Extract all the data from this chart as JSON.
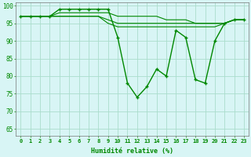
{
  "xlabel": "Humidité relative (%)",
  "xlim": [
    -0.5,
    23.5
  ],
  "ylim": [
    63,
    101
  ],
  "yticks": [
    65,
    70,
    75,
    80,
    85,
    90,
    95,
    100
  ],
  "xticks": [
    0,
    1,
    2,
    3,
    4,
    5,
    6,
    7,
    8,
    9,
    10,
    11,
    12,
    13,
    14,
    15,
    16,
    17,
    18,
    19,
    20,
    21,
    22,
    23
  ],
  "bg_color": "#d8f5f5",
  "line_color": "#008800",
  "grid_color": "#aaddcc",
  "lines": [
    {
      "data": [
        97,
        97,
        97,
        97,
        99,
        99,
        99,
        99,
        99,
        99,
        91,
        78,
        74,
        77,
        82,
        80,
        93,
        91,
        79,
        78,
        90,
        95,
        96,
        96
      ],
      "marker": true,
      "lw": 1.0
    },
    {
      "data": [
        97,
        97,
        97,
        97,
        98,
        98,
        98,
        98,
        98,
        98,
        97,
        97,
        97,
        97,
        97,
        96,
        96,
        96,
        95,
        95,
        95,
        95,
        96,
        96
      ],
      "marker": false,
      "lw": 0.8
    },
    {
      "data": [
        97,
        97,
        97,
        97,
        97,
        97,
        97,
        97,
        97,
        96,
        95,
        95,
        95,
        95,
        95,
        95,
        95,
        95,
        95,
        95,
        95,
        95,
        96,
        96
      ],
      "marker": false,
      "lw": 0.8
    },
    {
      "data": [
        97,
        97,
        97,
        97,
        97,
        97,
        97,
        97,
        97,
        95,
        94,
        94,
        94,
        94,
        94,
        94,
        94,
        94,
        94,
        94,
        94,
        95,
        96,
        96
      ],
      "marker": false,
      "lw": 0.8
    }
  ]
}
